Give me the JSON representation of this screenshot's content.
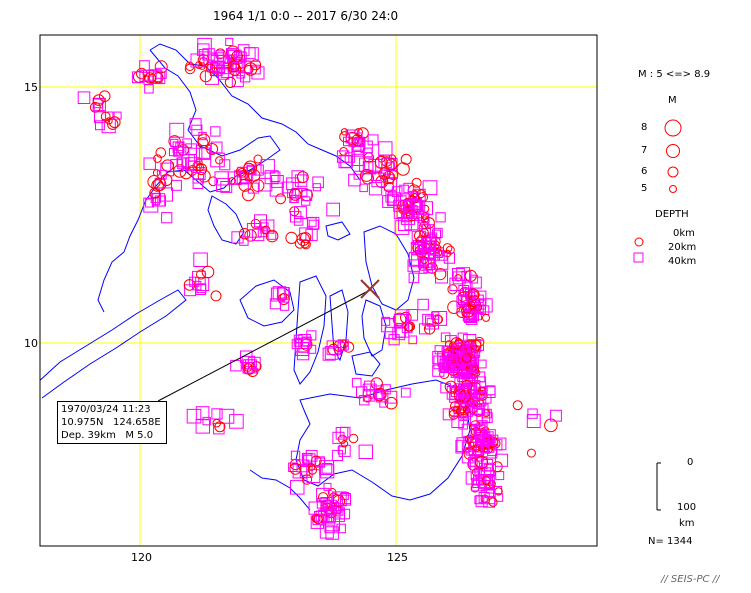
{
  "header": {
    "title": "1964 1/1 0:0 -- 2017 6/30 24:0"
  },
  "map": {
    "lat_ticks": [
      {
        "label": "15",
        "value": 15
      },
      {
        "label": "10",
        "value": 10
      }
    ],
    "lon_ticks": [
      {
        "label": "120",
        "value": 120
      },
      {
        "label": "125",
        "value": 125
      }
    ],
    "colors": {
      "frame": "#000000",
      "grid": "#ffff00",
      "coast": "#0000ff",
      "shallow": "#ff0000",
      "deep": "#ff00ff",
      "marker": "#993333"
    }
  },
  "selected_event": {
    "date": "1970/03/24 11:23",
    "location": "10.975N   124.658E",
    "depth": "Dep. 39km",
    "magnitude": "M 5.0"
  },
  "legend": {
    "mag_range": "M : 5 <=> 8.9",
    "mag_title": "M",
    "mag_items": [
      {
        "label": "8"
      },
      {
        "label": "7"
      },
      {
        "label": "6"
      },
      {
        "label": "5"
      }
    ],
    "depth_title": "DEPTH",
    "depth_items": [
      {
        "label": "0km"
      },
      {
        "label": "20km"
      },
      {
        "label": "40km"
      }
    ],
    "scale_top": "0",
    "scale_bottom": "100",
    "scale_unit": "km",
    "count": "N= 1344"
  },
  "footer": {
    "credit": "// SEIS-PC //"
  }
}
